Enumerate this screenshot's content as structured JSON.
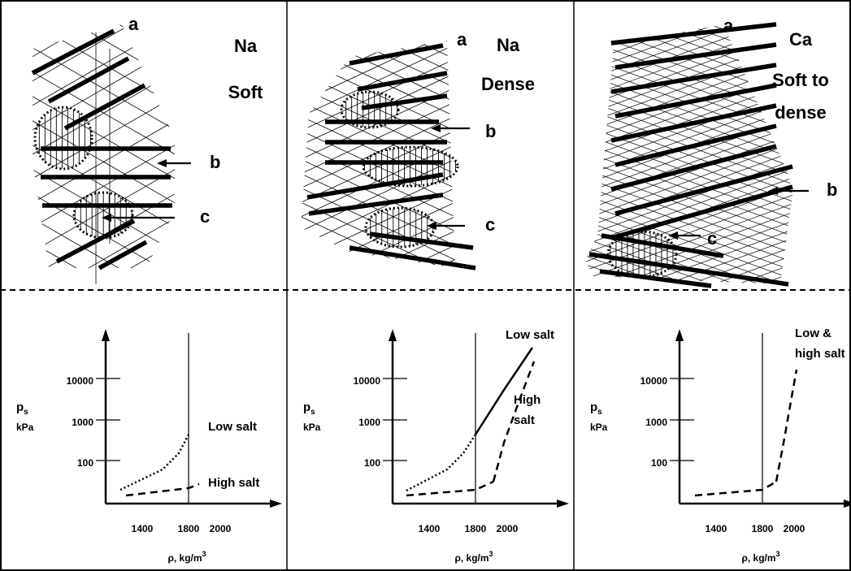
{
  "panels": [
    {
      "cation": "Na",
      "consistency": [
        "Soft"
      ],
      "labels": [
        "a",
        "b",
        "c"
      ],
      "plot": {
        "y_label": "p",
        "y_label_sub": "s",
        "y_unit": "kPa",
        "yticks": [
          10000,
          1000,
          100
        ],
        "xticks": [
          1400,
          1800,
          2000
        ],
        "x_label": "ρ, kg/m",
        "x_label_sup": "3",
        "curve_labels": [
          [
            "Low salt"
          ],
          [
            "High salt"
          ]
        ]
      }
    },
    {
      "cation": "Na",
      "consistency": [
        "Dense"
      ],
      "labels": [
        "a",
        "b",
        "c"
      ],
      "plot": {
        "y_label": "p",
        "y_label_sub": "s",
        "y_unit": "kPa",
        "yticks": [
          10000,
          1000,
          100
        ],
        "xticks": [
          1400,
          1800,
          2000
        ],
        "x_label": "ρ, kg/m",
        "x_label_sup": "3",
        "curve_labels": [
          [
            "Low salt"
          ],
          [
            "High",
            "salt"
          ]
        ]
      }
    },
    {
      "cation": "Ca",
      "consistency": [
        "Soft to",
        "dense"
      ],
      "labels": [
        "a",
        "b",
        "c"
      ],
      "plot": {
        "y_label": "p",
        "y_label_sub": "s",
        "y_unit": "kPa",
        "yticks": [
          10000,
          1000,
          100
        ],
        "xticks": [
          1400,
          1800,
          2000
        ],
        "x_label": "ρ, kg/m",
        "x_label_sup": "3",
        "curve_labels": [
          [
            "Low &",
            "high salt"
          ]
        ]
      }
    }
  ]
}
